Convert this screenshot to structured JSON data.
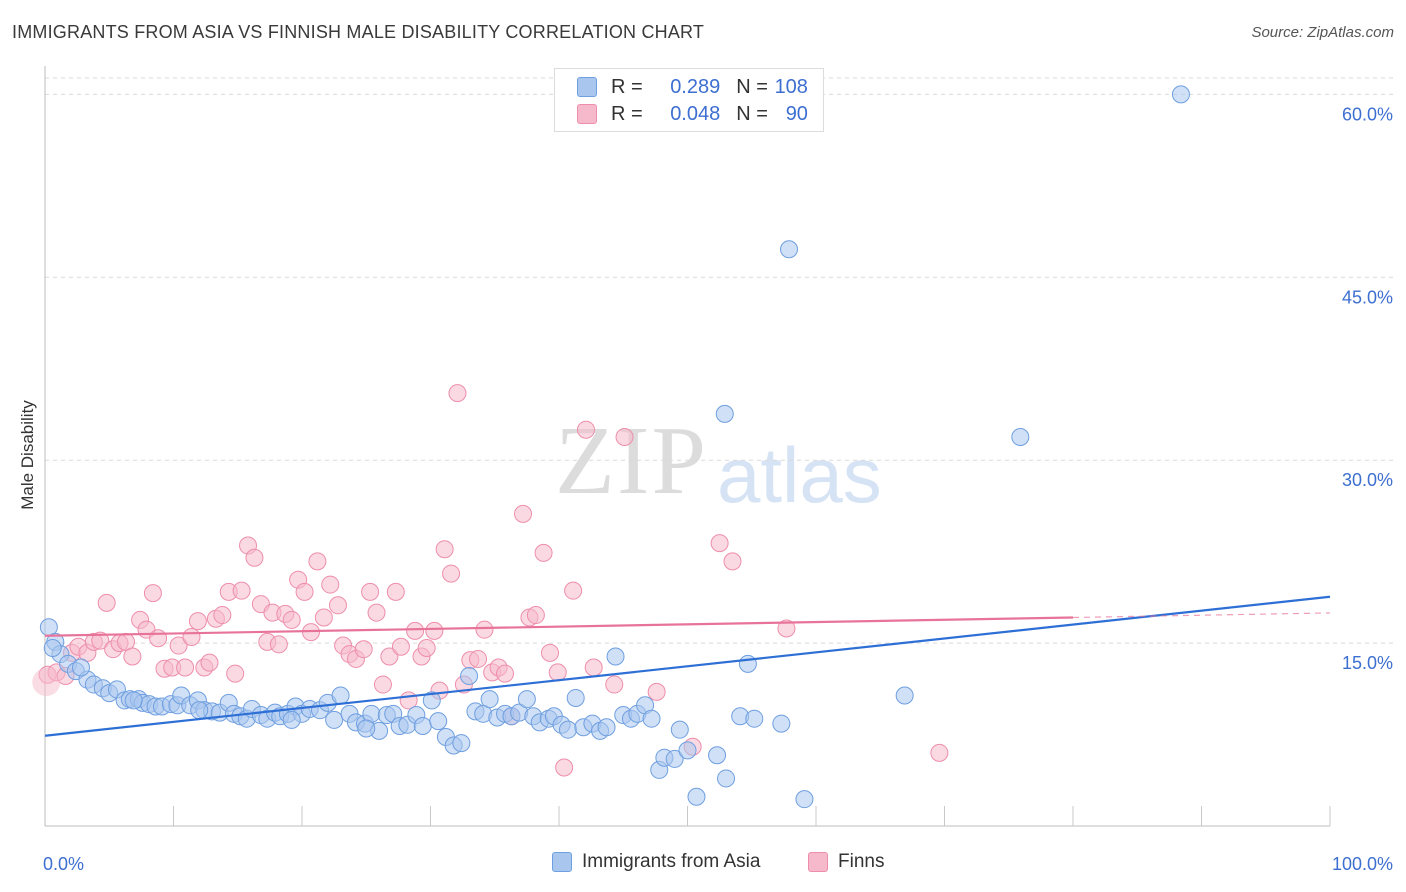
{
  "header": {
    "title": "IMMIGRANTS FROM ASIA VS FINNISH MALE DISABILITY CORRELATION CHART",
    "source": "Source: ZipAtlas.com"
  },
  "watermark": {
    "zip": "ZIP",
    "atlas": "atlas"
  },
  "stats_legend": {
    "rows": [
      {
        "r_label": "R =",
        "r_value": "0.289",
        "n_label": "N =",
        "n_value": "108"
      },
      {
        "r_label": "R =",
        "r_value": "0.048",
        "n_label": "N =",
        "n_value": "90"
      }
    ]
  },
  "colors": {
    "blue_fill": "#a9c6ee",
    "blue_stroke": "#6f9fe0",
    "blue_line": "#2e6fd6",
    "pink_fill": "#f6b9cc",
    "pink_stroke": "#ee8eab",
    "pink_line": "#e8739a",
    "grid": "#d9d9d9",
    "tick_label": "#3d6fd1"
  },
  "chart_data": {
    "type": "scatter",
    "title": "IMMIGRANTS FROM ASIA VS FINNISH MALE DISABILITY CORRELATION CHART",
    "xlabel": "",
    "ylabel": "Male Disability",
    "xlim": [
      0,
      100
    ],
    "ylim": [
      0,
      62
    ],
    "x_tick_labels": [
      "0.0%",
      "100.0%"
    ],
    "y_ticks": [
      15,
      30,
      45,
      60
    ],
    "y_tick_labels": [
      "15.0%",
      "30.0%",
      "45.0%",
      "60.0%"
    ],
    "grid": true,
    "legend_position": "bottom",
    "series": [
      {
        "name": "Immigrants from Asia",
        "color": "#6f9fe0",
        "trend": {
          "x": [
            0,
            100
          ],
          "y": [
            7.4,
            18.8
          ]
        },
        "points": [
          [
            0.3,
            16.3
          ],
          [
            0.8,
            15.1
          ],
          [
            1.2,
            14.1
          ],
          [
            1.8,
            13.3
          ],
          [
            2.4,
            12.7
          ],
          [
            3.3,
            12.0
          ],
          [
            3.8,
            11.6
          ],
          [
            4.5,
            11.3
          ],
          [
            5.0,
            10.9
          ],
          [
            5.6,
            11.2
          ],
          [
            6.2,
            10.3
          ],
          [
            6.6,
            10.4
          ],
          [
            7.3,
            10.4
          ],
          [
            7.6,
            10.1
          ],
          [
            8.1,
            10.0
          ],
          [
            8.6,
            9.8
          ],
          [
            9.1,
            9.8
          ],
          [
            9.8,
            10.0
          ],
          [
            10.3,
            9.9
          ],
          [
            10.6,
            10.7
          ],
          [
            11.3,
            9.9
          ],
          [
            11.9,
            10.3
          ],
          [
            12.4,
            9.5
          ],
          [
            13.0,
            9.4
          ],
          [
            13.6,
            9.3
          ],
          [
            14.3,
            10.1
          ],
          [
            14.7,
            9.2
          ],
          [
            15.2,
            9.0
          ],
          [
            15.7,
            8.8
          ],
          [
            16.1,
            9.6
          ],
          [
            16.8,
            9.1
          ],
          [
            17.3,
            8.8
          ],
          [
            17.9,
            9.3
          ],
          [
            18.3,
            9.0
          ],
          [
            18.9,
            9.2
          ],
          [
            19.5,
            9.8
          ],
          [
            20.0,
            9.2
          ],
          [
            20.6,
            9.6
          ],
          [
            21.4,
            9.5
          ],
          [
            22.0,
            10.1
          ],
          [
            22.5,
            8.7
          ],
          [
            23.0,
            10.7
          ],
          [
            23.7,
            9.2
          ],
          [
            24.2,
            8.5
          ],
          [
            24.9,
            8.4
          ],
          [
            25.4,
            9.2
          ],
          [
            26.0,
            7.8
          ],
          [
            26.6,
            9.1
          ],
          [
            27.1,
            9.2
          ],
          [
            27.6,
            8.2
          ],
          [
            28.2,
            8.3
          ],
          [
            28.9,
            9.1
          ],
          [
            29.4,
            8.2
          ],
          [
            30.1,
            10.3
          ],
          [
            30.6,
            8.6
          ],
          [
            31.2,
            7.3
          ],
          [
            31.8,
            6.6
          ],
          [
            32.4,
            6.8
          ],
          [
            33.0,
            12.3
          ],
          [
            33.5,
            9.4
          ],
          [
            34.1,
            9.2
          ],
          [
            34.6,
            10.4
          ],
          [
            35.2,
            8.9
          ],
          [
            35.8,
            9.2
          ],
          [
            36.3,
            9.0
          ],
          [
            36.9,
            9.3
          ],
          [
            37.5,
            10.4
          ],
          [
            38.0,
            9.0
          ],
          [
            38.5,
            8.5
          ],
          [
            39.2,
            8.8
          ],
          [
            39.6,
            9.0
          ],
          [
            40.2,
            8.3
          ],
          [
            40.7,
            7.9
          ],
          [
            41.3,
            10.5
          ],
          [
            41.9,
            8.1
          ],
          [
            42.6,
            8.4
          ],
          [
            43.2,
            7.8
          ],
          [
            43.7,
            8.1
          ],
          [
            44.4,
            13.9
          ],
          [
            45.0,
            9.1
          ],
          [
            45.6,
            8.8
          ],
          [
            46.1,
            9.2
          ],
          [
            46.7,
            9.9
          ],
          [
            47.2,
            8.8
          ],
          [
            47.8,
            4.6
          ],
          [
            48.2,
            5.6
          ],
          [
            49.0,
            5.5
          ],
          [
            49.4,
            7.9
          ],
          [
            50.0,
            6.2
          ],
          [
            50.7,
            2.4
          ],
          [
            52.3,
            5.8
          ],
          [
            53.0,
            3.9
          ],
          [
            54.7,
            13.3
          ],
          [
            54.1,
            9.0
          ],
          [
            55.2,
            8.8
          ],
          [
            52.9,
            33.8
          ],
          [
            57.9,
            47.3
          ],
          [
            57.3,
            8.4
          ],
          [
            59.1,
            2.2
          ],
          [
            66.9,
            10.7
          ],
          [
            75.9,
            31.9
          ],
          [
            88.4,
            60.0
          ],
          [
            0.6,
            14.6
          ],
          [
            2.8,
            13.0
          ],
          [
            6.9,
            10.3
          ],
          [
            12.0,
            9.5
          ],
          [
            19.2,
            8.7
          ],
          [
            25.0,
            8.0
          ]
        ]
      },
      {
        "name": "Finns",
        "color": "#ee8eab",
        "trend": {
          "x": [
            0,
            80
          ],
          "y": [
            15.6,
            17.1
          ]
        },
        "points": [
          [
            0.2,
            12.4
          ],
          [
            0.9,
            12.6
          ],
          [
            1.6,
            12.3
          ],
          [
            2.1,
            14.2
          ],
          [
            2.6,
            14.7
          ],
          [
            3.3,
            14.2
          ],
          [
            3.8,
            15.1
          ],
          [
            4.3,
            15.2
          ],
          [
            4.8,
            18.3
          ],
          [
            5.3,
            14.5
          ],
          [
            5.8,
            15.0
          ],
          [
            6.3,
            15.1
          ],
          [
            6.8,
            13.9
          ],
          [
            7.4,
            16.9
          ],
          [
            7.9,
            16.1
          ],
          [
            8.4,
            19.1
          ],
          [
            8.8,
            15.4
          ],
          [
            9.3,
            12.9
          ],
          [
            9.9,
            13.0
          ],
          [
            10.4,
            14.8
          ],
          [
            10.9,
            13.0
          ],
          [
            11.4,
            15.5
          ],
          [
            11.9,
            16.8
          ],
          [
            12.4,
            13.0
          ],
          [
            12.8,
            13.4
          ],
          [
            13.3,
            17.0
          ],
          [
            13.8,
            17.3
          ],
          [
            14.3,
            19.2
          ],
          [
            14.8,
            12.5
          ],
          [
            15.3,
            19.3
          ],
          [
            15.8,
            23.0
          ],
          [
            16.3,
            22.0
          ],
          [
            16.8,
            18.2
          ],
          [
            17.3,
            15.1
          ],
          [
            17.7,
            17.5
          ],
          [
            18.2,
            14.9
          ],
          [
            18.7,
            17.4
          ],
          [
            19.2,
            16.9
          ],
          [
            19.7,
            20.2
          ],
          [
            20.2,
            19.2
          ],
          [
            20.7,
            15.9
          ],
          [
            21.2,
            21.7
          ],
          [
            21.7,
            17.1
          ],
          [
            22.2,
            19.8
          ],
          [
            22.8,
            18.1
          ],
          [
            23.2,
            14.8
          ],
          [
            23.7,
            14.1
          ],
          [
            24.2,
            13.7
          ],
          [
            24.8,
            14.5
          ],
          [
            25.3,
            19.2
          ],
          [
            25.8,
            17.5
          ],
          [
            26.3,
            11.6
          ],
          [
            26.8,
            13.9
          ],
          [
            27.3,
            19.2
          ],
          [
            27.7,
            14.7
          ],
          [
            28.3,
            10.3
          ],
          [
            28.8,
            16.0
          ],
          [
            29.3,
            13.9
          ],
          [
            29.7,
            14.6
          ],
          [
            30.3,
            16.0
          ],
          [
            30.7,
            11.1
          ],
          [
            31.1,
            22.7
          ],
          [
            31.6,
            20.7
          ],
          [
            32.1,
            35.5
          ],
          [
            32.6,
            11.6
          ],
          [
            33.1,
            13.6
          ],
          [
            33.7,
            13.7
          ],
          [
            34.2,
            16.1
          ],
          [
            34.8,
            12.6
          ],
          [
            35.3,
            13.0
          ],
          [
            35.8,
            12.5
          ],
          [
            36.3,
            9.0
          ],
          [
            37.2,
            25.6
          ],
          [
            37.7,
            17.1
          ],
          [
            38.2,
            17.3
          ],
          [
            38.8,
            22.4
          ],
          [
            39.3,
            14.2
          ],
          [
            39.9,
            12.6
          ],
          [
            40.4,
            4.8
          ],
          [
            41.1,
            19.3
          ],
          [
            42.1,
            32.5
          ],
          [
            42.7,
            13.0
          ],
          [
            44.3,
            11.6
          ],
          [
            45.1,
            31.9
          ],
          [
            47.6,
            11.0
          ],
          [
            50.4,
            6.5
          ],
          [
            52.5,
            23.2
          ],
          [
            53.5,
            21.7
          ],
          [
            57.7,
            16.2
          ],
          [
            69.6,
            6.0
          ]
        ]
      }
    ]
  },
  "bottom_legend": {
    "items": [
      {
        "label": "Immigrants from Asia"
      },
      {
        "label": "Finns"
      }
    ]
  }
}
